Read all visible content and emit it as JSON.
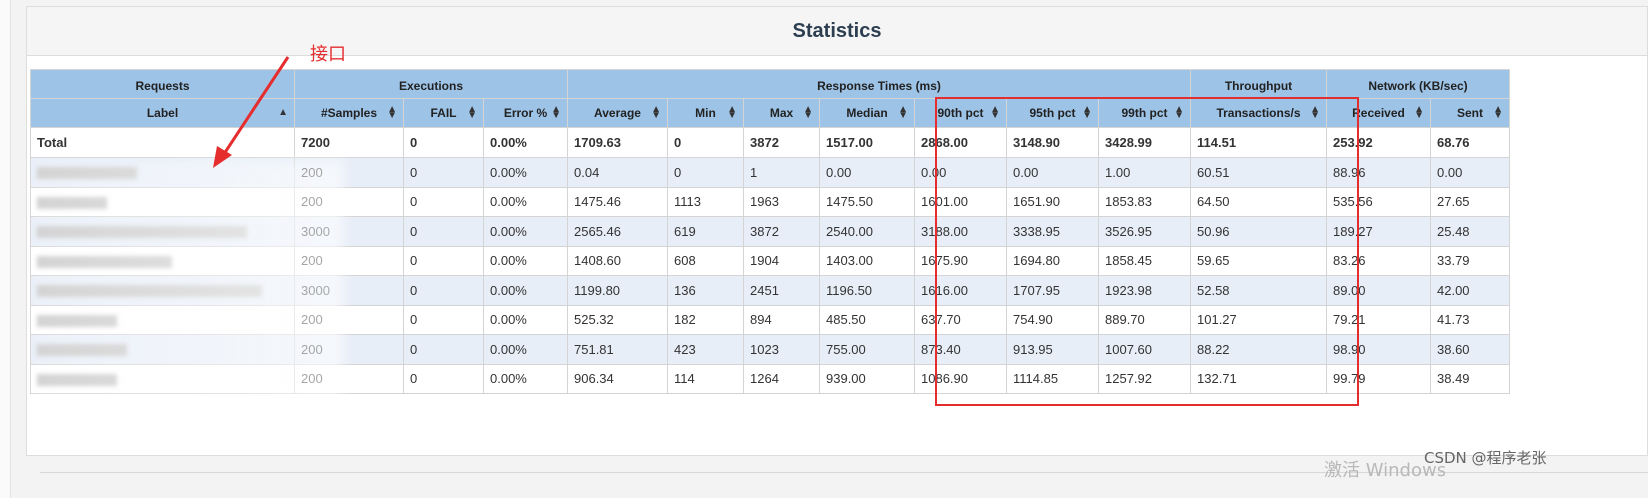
{
  "page": {
    "title": "Statistics",
    "annotation": "接口",
    "watermark": "CSDN @程序老张",
    "windows_watermark": "激活 Windows"
  },
  "table": {
    "groups": [
      "Requests",
      "Executions",
      "Response Times (ms)",
      "Throughput",
      "Network (KB/sec)"
    ],
    "columns": [
      "Label",
      "#Samples",
      "FAIL",
      "Error %",
      "Average",
      "Min",
      "Max",
      "Median",
      "90th pct",
      "95th pct",
      "99th pct",
      "Transactions/s",
      "Received",
      "Sent"
    ],
    "total": [
      "Total",
      "7200",
      "0",
      "0.00%",
      "1709.63",
      "0",
      "3872",
      "1517.00",
      "2868.00",
      "3148.90",
      "3428.99",
      "114.51",
      "253.92",
      "68.76"
    ],
    "rows": [
      [
        "",
        "200",
        "0",
        "0.00%",
        "0.04",
        "0",
        "1",
        "0.00",
        "0.00",
        "0.00",
        "1.00",
        "60.51",
        "88.96",
        "0.00"
      ],
      [
        "",
        "200",
        "0",
        "0.00%",
        "1475.46",
        "1113",
        "1963",
        "1475.50",
        "1601.00",
        "1651.90",
        "1853.83",
        "64.50",
        "535.56",
        "27.65"
      ],
      [
        "",
        "3000",
        "0",
        "0.00%",
        "2565.46",
        "619",
        "3872",
        "2540.00",
        "3188.00",
        "3338.95",
        "3526.95",
        "50.96",
        "189.27",
        "25.48"
      ],
      [
        "",
        "200",
        "0",
        "0.00%",
        "1408.60",
        "608",
        "1904",
        "1403.00",
        "1675.90",
        "1694.80",
        "1858.45",
        "59.65",
        "83.26",
        "33.79"
      ],
      [
        "",
        "3000",
        "0",
        "0.00%",
        "1199.80",
        "136",
        "2451",
        "1196.50",
        "1616.00",
        "1707.95",
        "1923.98",
        "52.58",
        "89.00",
        "42.00"
      ],
      [
        "",
        "200",
        "0",
        "0.00%",
        "525.32",
        "182",
        "894",
        "485.50",
        "637.70",
        "754.90",
        "889.70",
        "101.27",
        "79.21",
        "41.73"
      ],
      [
        "",
        "200",
        "0",
        "0.00%",
        "751.81",
        "423",
        "1023",
        "755.00",
        "873.40",
        "913.95",
        "1007.60",
        "88.22",
        "98.90",
        "38.60"
      ],
      [
        "",
        "200",
        "0",
        "0.00%",
        "906.34",
        "114",
        "1264",
        "939.00",
        "1086.90",
        "1114.85",
        "1257.92",
        "132.71",
        "99.79",
        "38.49"
      ]
    ]
  },
  "colors": {
    "header_bg": "#9dc3e6",
    "odd_row_bg": "#e8eef8",
    "annotation_red": "#e52d2d"
  }
}
